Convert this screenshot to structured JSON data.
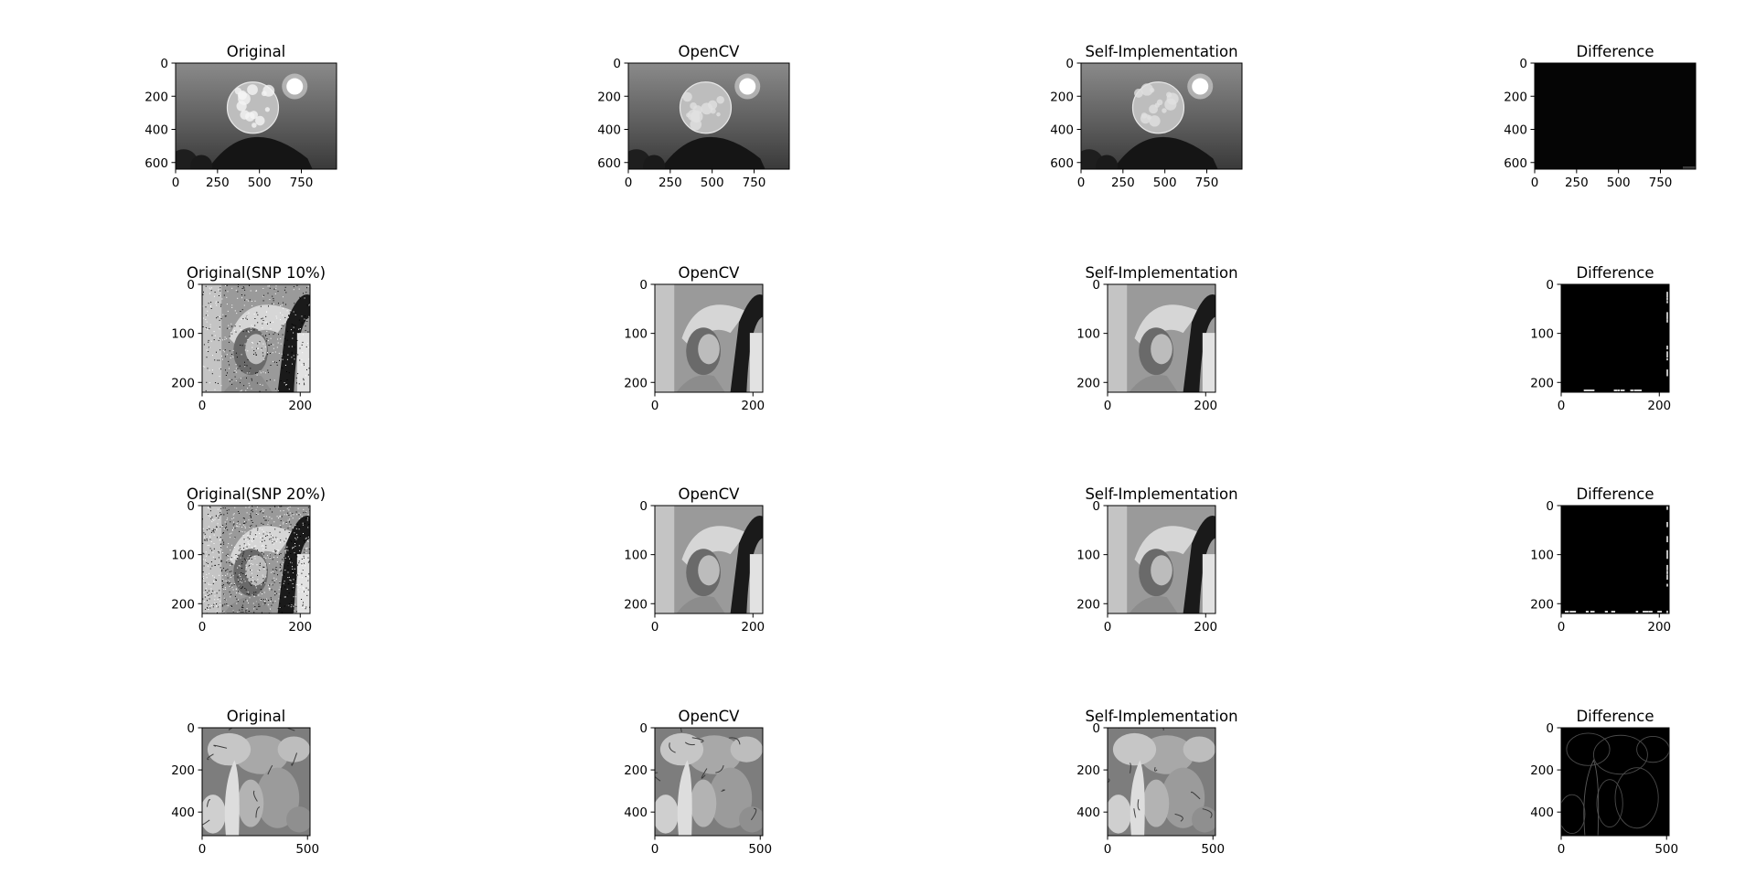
{
  "figure": {
    "background": "#ffffff",
    "axis_color": "#000000"
  },
  "chart_data": [
    {
      "type": "image",
      "title": "Original",
      "image_width": 960,
      "image_height": 640,
      "xticks": [
        0,
        250,
        500,
        750
      ],
      "yticks": [
        0,
        200,
        400,
        600
      ],
      "content": "moon-original",
      "tone": "grayscale"
    },
    {
      "type": "image",
      "title": "OpenCV",
      "image_width": 960,
      "image_height": 640,
      "xticks": [
        0,
        250,
        500,
        750
      ],
      "yticks": [
        0,
        200,
        400,
        600
      ],
      "content": "moon-filtered",
      "tone": "grayscale"
    },
    {
      "type": "image",
      "title": "Self-Implementation",
      "image_width": 960,
      "image_height": 640,
      "xticks": [
        0,
        250,
        500,
        750
      ],
      "yticks": [
        0,
        200,
        400,
        600
      ],
      "content": "moon-filtered",
      "tone": "grayscale"
    },
    {
      "type": "image",
      "title": "Difference",
      "image_width": 960,
      "image_height": 640,
      "xticks": [
        0,
        250,
        500,
        750
      ],
      "yticks": [
        0,
        200,
        400,
        600
      ],
      "content": "difference-dark",
      "tone": "grayscale"
    },
    {
      "type": "image",
      "title": "Original(SNP 10%)",
      "image_width": 220,
      "image_height": 220,
      "xticks": [
        0,
        200
      ],
      "yticks": [
        0,
        100,
        200
      ],
      "content": "portrait-noisy",
      "noise_fraction": 0.1,
      "tone": "grayscale"
    },
    {
      "type": "image",
      "title": "OpenCV",
      "image_width": 220,
      "image_height": 220,
      "xticks": [
        0,
        200
      ],
      "yticks": [
        0,
        100,
        200
      ],
      "content": "portrait-filtered",
      "tone": "grayscale"
    },
    {
      "type": "image",
      "title": "Self-Implementation",
      "image_width": 220,
      "image_height": 220,
      "xticks": [
        0,
        200
      ],
      "yticks": [
        0,
        100,
        200
      ],
      "content": "portrait-filtered",
      "tone": "grayscale"
    },
    {
      "type": "image",
      "title": "Difference",
      "image_width": 220,
      "image_height": 220,
      "xticks": [
        0,
        200
      ],
      "yticks": [
        0,
        100,
        200
      ],
      "content": "difference-edges",
      "tone": "grayscale"
    },
    {
      "type": "image",
      "title": "Original(SNP 20%)",
      "image_width": 220,
      "image_height": 220,
      "xticks": [
        0,
        200
      ],
      "yticks": [
        0,
        100,
        200
      ],
      "content": "portrait-noisy",
      "noise_fraction": 0.2,
      "tone": "grayscale"
    },
    {
      "type": "image",
      "title": "OpenCV",
      "image_width": 220,
      "image_height": 220,
      "xticks": [
        0,
        200
      ],
      "yticks": [
        0,
        100,
        200
      ],
      "content": "portrait-filtered",
      "tone": "grayscale"
    },
    {
      "type": "image",
      "title": "Self-Implementation",
      "image_width": 220,
      "image_height": 220,
      "xticks": [
        0,
        200
      ],
      "yticks": [
        0,
        100,
        200
      ],
      "content": "portrait-filtered",
      "tone": "grayscale"
    },
    {
      "type": "image",
      "title": "Difference",
      "image_width": 220,
      "image_height": 220,
      "xticks": [
        0,
        200
      ],
      "yticks": [
        0,
        100,
        200
      ],
      "content": "difference-edges",
      "tone": "grayscale"
    },
    {
      "type": "image",
      "title": "Original",
      "image_width": 512,
      "image_height": 512,
      "xticks": [
        0,
        500
      ],
      "yticks": [
        0,
        200,
        400
      ],
      "content": "peppers-original",
      "tone": "grayscale"
    },
    {
      "type": "image",
      "title": "OpenCV",
      "image_width": 512,
      "image_height": 512,
      "xticks": [
        0,
        500
      ],
      "yticks": [
        0,
        200,
        400
      ],
      "content": "peppers-filtered",
      "tone": "grayscale"
    },
    {
      "type": "image",
      "title": "Self-Implementation",
      "image_width": 512,
      "image_height": 512,
      "xticks": [
        0,
        500
      ],
      "yticks": [
        0,
        200,
        400
      ],
      "content": "peppers-filtered",
      "tone": "grayscale"
    },
    {
      "type": "image",
      "title": "Difference",
      "image_width": 512,
      "image_height": 512,
      "xticks": [
        0,
        500
      ],
      "yticks": [
        0,
        200,
        400
      ],
      "content": "difference-outline",
      "tone": "grayscale"
    }
  ]
}
